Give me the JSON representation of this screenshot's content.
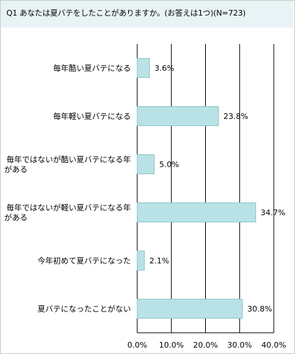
{
  "title": "Q1 あなたは夏バテをしたことがありますか。(お答えは1つ)(N=723)",
  "chart_data": {
    "type": "bar",
    "orientation": "horizontal",
    "title": "Q1 あなたは夏バテをしたことがありますか。(お答えは1つ)(N=723)",
    "categories": [
      [
        "毎年酷い夏バテになる"
      ],
      [
        "毎年軽い夏バテになる"
      ],
      [
        "毎年ではないが酷い夏バテになる年",
        "がある"
      ],
      [
        "毎年ではないが軽い夏バテになる年",
        "がある"
      ],
      [
        "今年初めて夏バテになった"
      ],
      [
        "夏バテになったことがない"
      ]
    ],
    "values": [
      3.6,
      23.8,
      5.0,
      34.7,
      2.1,
      30.8
    ],
    "value_labels": [
      "3.6%",
      "23.8%",
      "5.0%",
      "34.7%",
      "2.1%",
      "30.8%"
    ],
    "xlim": [
      0,
      40
    ],
    "x_ticks": [
      "0.0%",
      "10.0%",
      "20.0%",
      "30.0%",
      "40.0%"
    ],
    "grid": true,
    "bar_color": "#b9e2e6",
    "bar_edge_color": "#8fc4cb"
  }
}
